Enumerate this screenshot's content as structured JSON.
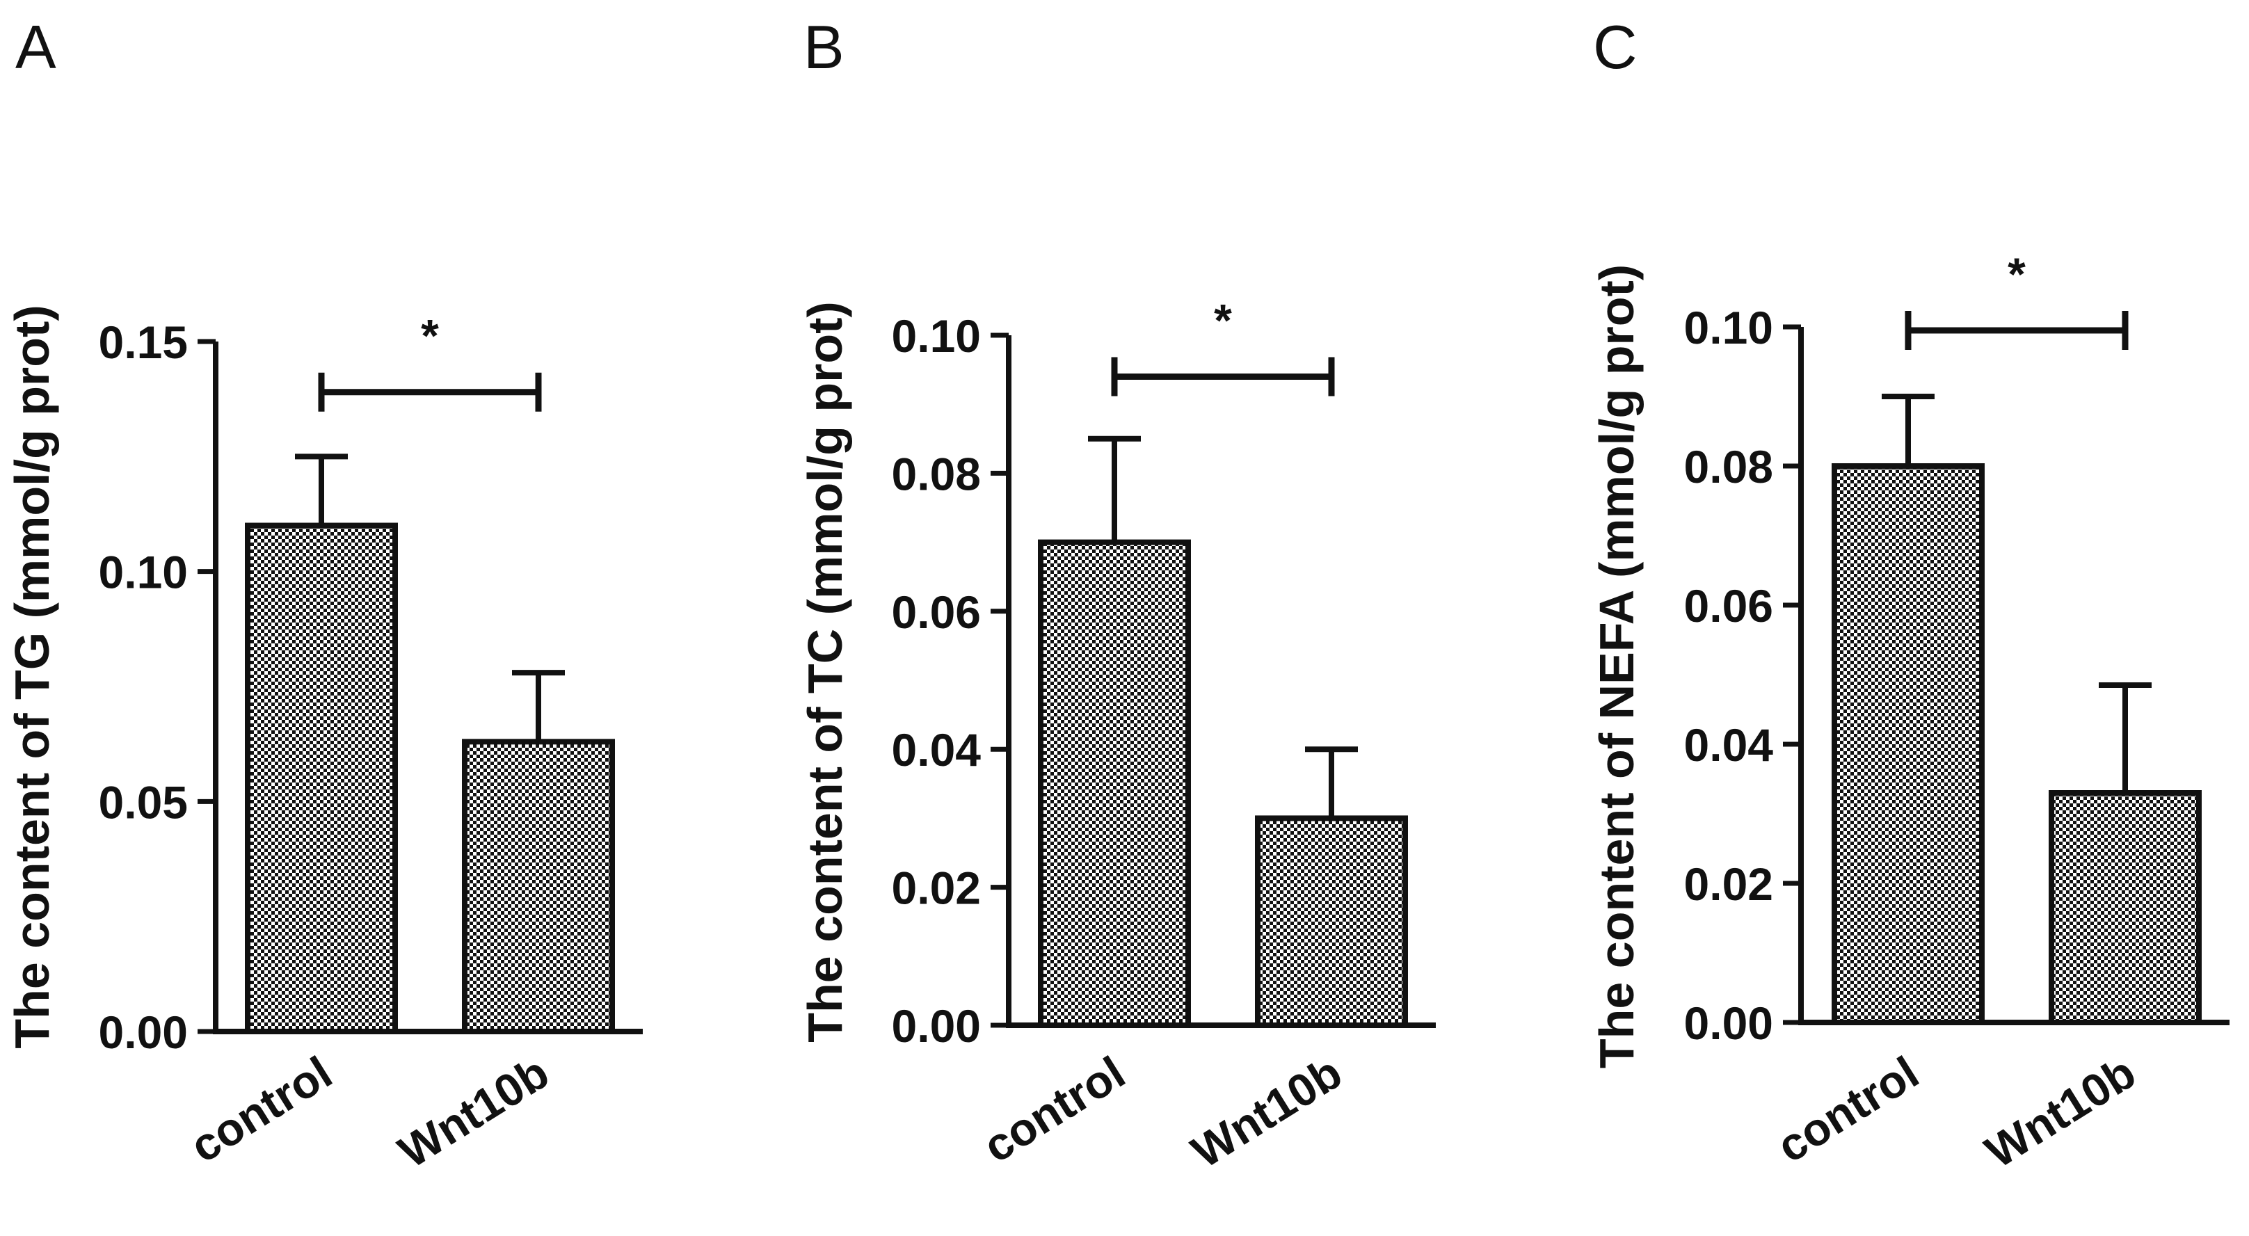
{
  "figure_colors": {
    "ink": "#111111",
    "bar_pattern_fg": "#111111",
    "bar_pattern_bg": "#ffffff"
  },
  "chart_data": [
    {
      "panel": "A",
      "type": "bar",
      "categories": [
        "control",
        "Wnt10b"
      ],
      "values": [
        0.11,
        0.063
      ],
      "errors": [
        0.015,
        0.015
      ],
      "ylabel": "The content of  TG (mmol/g prot)",
      "ylim": [
        0,
        0.15
      ],
      "yticks": [
        0.0,
        0.05,
        0.1,
        0.15
      ],
      "ytick_labels": [
        "0.00",
        "0.05",
        "0.10",
        "0.15"
      ],
      "significance": {
        "label": "*",
        "level": 0.139
      }
    },
    {
      "panel": "B",
      "type": "bar",
      "categories": [
        "control",
        "Wnt10b"
      ],
      "values": [
        0.07,
        0.03
      ],
      "errors": [
        0.015,
        0.01
      ],
      "ylabel": "The content of  TC (mmol/g prot)",
      "ylim": [
        0,
        0.1
      ],
      "yticks": [
        0.0,
        0.02,
        0.04,
        0.06,
        0.08,
        0.1
      ],
      "ytick_labels": [
        "0.00",
        "0.02",
        "0.04",
        "0.06",
        "0.08",
        "0.10"
      ],
      "significance": {
        "label": "*",
        "level": 0.094
      }
    },
    {
      "panel": "C",
      "type": "bar",
      "categories": [
        "control",
        "Wnt10b"
      ],
      "values": [
        0.08,
        0.033
      ],
      "errors": [
        0.01,
        0.0155
      ],
      "ylabel": "The content of  NEFA (mmol/g prot)",
      "ylim": [
        0,
        0.1
      ],
      "yticks": [
        0.0,
        0.02,
        0.04,
        0.06,
        0.08,
        0.1
      ],
      "ytick_labels": [
        "0.00",
        "0.02",
        "0.04",
        "0.06",
        "0.08",
        "0.10"
      ],
      "significance": {
        "label": "*",
        "level": 0.0995
      }
    }
  ]
}
